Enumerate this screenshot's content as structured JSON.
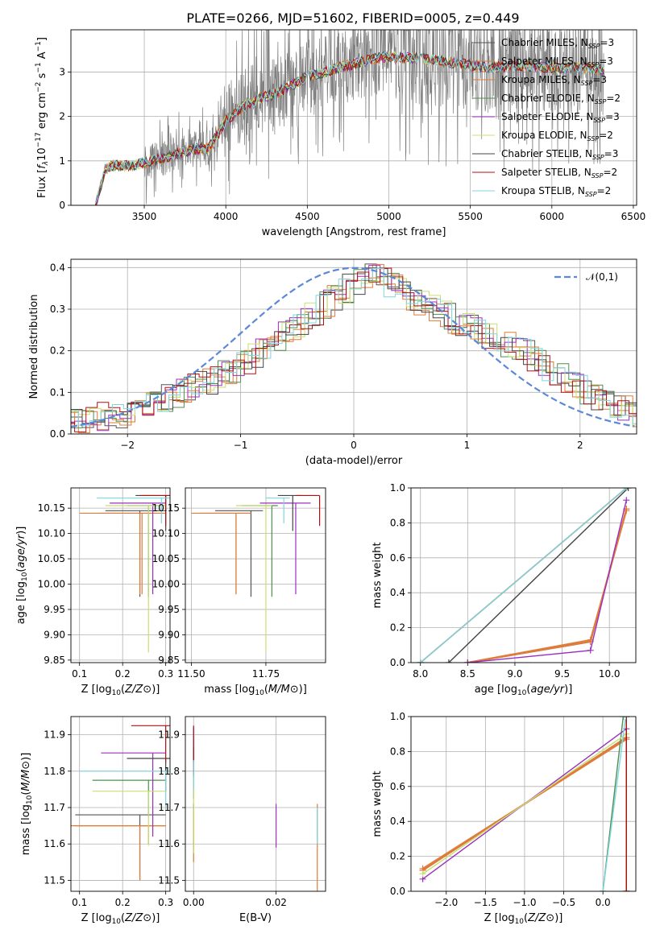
{
  "figure": {
    "title": "PLATE=0266, MJD=51602, FIBERID=0005, z=0.449"
  },
  "colors": {
    "chabrier_miles": "#555555",
    "salpeter_miles": "#e07b39",
    "kroupa_miles": "#e07b39",
    "chabrier_elodie": "#4f8f4f",
    "salpeter_elodie": "#9b30c0",
    "kroupa_elodie": "#c8e070",
    "chabrier_stelib": "#444444",
    "salpeter_stelib": "#b01010",
    "kroupa_stelib": "#7fd6e0",
    "normal": "#5b88d8",
    "spectrum": "#7f7f7f"
  },
  "chart_data": [
    {
      "id": "spectrum",
      "type": "line",
      "xlabel": "wavelength [Angstrom, rest frame]",
      "ylabel": "Flux [fλ10⁻¹⁷ erg cm⁻² s⁻¹ A⁻¹]",
      "xlim": [
        3050,
        6520
      ],
      "ylim": [
        0,
        3.95
      ],
      "xticks": [
        3500,
        4000,
        4500,
        5000,
        5500,
        6000,
        6500
      ],
      "yticks": [
        0,
        1,
        2,
        3
      ],
      "legend": {
        "placement": "top-right",
        "entries": [
          "Chabrier MILES, N_SSP=3",
          "Salpeter MILES, N_SSP=3",
          "Kroupa MILES, N_SSP=3",
          "Chabrier ELODIE, N_SSP=2",
          "Salpeter ELODIE, N_SSP=3",
          "Kroupa ELODIE, N_SSP=2",
          "Chabrier STELIB, N_SSP=3",
          "Salpeter STELIB, N_SSP=2",
          "Kroupa STELIB, N_SSP=2"
        ],
        "display": [
          {
            "text": "Chabrier MILES, N",
            "sub": "SSP",
            "post": "=3",
            "color": "#555555"
          },
          {
            "text": "Salpeter MILES, N",
            "sub": "SSP",
            "post": "=3",
            "color": "#e07b39"
          },
          {
            "text": "Kroupa MILES, N",
            "sub": "SSP",
            "post": "=3",
            "color": "#e07b39"
          },
          {
            "text": "Chabrier ELODIE, N",
            "sub": "SSP",
            "post": "=2",
            "color": "#4f8f4f"
          },
          {
            "text": "Salpeter ELODIE, N",
            "sub": "SSP",
            "post": "=3",
            "color": "#9b30c0"
          },
          {
            "text": "Kroupa ELODIE, N",
            "sub": "SSP",
            "post": "=2",
            "color": "#c8e070"
          },
          {
            "text": "Chabrier STELIB, N",
            "sub": "SSP",
            "post": "=3",
            "color": "#444444"
          },
          {
            "text": "Salpeter STELIB, N",
            "sub": "SSP",
            "post": "=2",
            "color": "#b01010"
          },
          {
            "text": "Kroupa STELIB, N",
            "sub": "SSP",
            "post": "=2",
            "color": "#7fd6e0"
          }
        ]
      },
      "models": {
        "x": [
          3200,
          3260,
          3300,
          3400,
          3500,
          3600,
          3700,
          3800,
          3900,
          4000,
          4100,
          4200,
          4300,
          4400,
          4500,
          4600,
          4700,
          4800,
          4900,
          5000,
          5200,
          5400,
          5600,
          5800,
          6000,
          6200,
          6320
        ],
        "y": [
          0,
          0.8,
          0.9,
          0.88,
          0.95,
          1.05,
          1.15,
          1.25,
          1.3,
          1.9,
          2.2,
          2.4,
          2.5,
          2.7,
          2.9,
          3.0,
          3.1,
          3.2,
          3.3,
          3.35,
          3.3,
          3.2,
          3.1,
          3.15,
          3.1,
          3.1,
          3.05
        ]
      }
    },
    {
      "id": "residual-histogram",
      "type": "line",
      "xlabel": "(data-model)/error",
      "ylabel": "Normed distribution",
      "xlim": [
        -2.5,
        2.5
      ],
      "ylim": [
        0,
        0.42
      ],
      "xticks": [
        -2,
        -1,
        0,
        1,
        2
      ],
      "yticks": [
        0.0,
        0.1,
        0.2,
        0.3,
        0.4
      ],
      "legend": {
        "placement": "top-right",
        "entries": [
          "𝒩(0,1)"
        ]
      },
      "histogram_envelope": {
        "x": [
          -2.5,
          -2.0,
          -1.5,
          -1.0,
          -0.5,
          0.0,
          0.2,
          0.5,
          1.0,
          1.5,
          2.0,
          2.5
        ],
        "y": [
          0.03,
          0.05,
          0.1,
          0.16,
          0.26,
          0.36,
          0.38,
          0.33,
          0.26,
          0.2,
          0.11,
          0.05
        ]
      }
    },
    {
      "id": "age-vs-Z",
      "type": "scatter",
      "xlabel": "Z [log10(Z/Z⊙)]",
      "ylabel": "age [log10(age/yr)]",
      "xlim": [
        0.08,
        0.31
      ],
      "ylim": [
        9.845,
        10.19
      ],
      "xticks": [
        0.1,
        0.2,
        0.3
      ],
      "yticks": [
        9.85,
        9.9,
        9.95,
        10.0,
        10.05,
        10.1,
        10.15
      ],
      "points": [
        {
          "model": "Chabrier MILES",
          "x": 0.24,
          "y": 10.145,
          "xerr": [
            0.08,
            0.06
          ],
          "yerr": [
            0.17,
            0
          ]
        },
        {
          "model": "Salpeter MILES",
          "x": 0.245,
          "y": 10.14,
          "xerr": [
            0.1,
            0.05
          ],
          "yerr": [
            0.16,
            0
          ]
        },
        {
          "model": "Kroupa MILES",
          "x": 0.24,
          "y": 10.14,
          "xerr": [
            0.14,
            0.06
          ],
          "yerr": [
            0.16,
            0
          ]
        },
        {
          "model": "Chabrier ELODIE",
          "x": 0.26,
          "y": 10.155,
          "xerr": [
            0.05,
            0.04
          ],
          "yerr": [
            0.18,
            0
          ]
        },
        {
          "model": "Salpeter ELODIE",
          "x": 0.27,
          "y": 10.16,
          "xerr": [
            0.1,
            0.03
          ],
          "yerr": [
            0.18,
            0
          ]
        },
        {
          "model": "Kroupa ELODIE",
          "x": 0.26,
          "y": 10.155,
          "xerr": [
            0.1,
            0.04
          ],
          "yerr": [
            0.29,
            0
          ]
        },
        {
          "model": "Chabrier STELIB",
          "x": 0.3,
          "y": 10.175,
          "xerr": [
            0.07,
            0.01
          ],
          "yerr": [
            0.07,
            0
          ]
        },
        {
          "model": "Salpeter STELIB",
          "x": 0.3,
          "y": 10.175,
          "xerr": [
            0.06,
            0.01
          ],
          "yerr": [
            0.06,
            0
          ]
        },
        {
          "model": "Kroupa STELIB",
          "x": 0.29,
          "y": 10.17,
          "xerr": [
            0.15,
            0.02
          ],
          "yerr": [
            0.05,
            0
          ]
        }
      ]
    },
    {
      "id": "age-vs-mass",
      "type": "scatter",
      "xlabel": "mass [log10(M/M⊙)]",
      "ylabel": "",
      "xlim": [
        11.48,
        11.95
      ],
      "ylim": [
        9.845,
        10.19
      ],
      "xticks": [
        11.5,
        11.75
      ],
      "yticks": [
        9.85,
        9.9,
        9.95,
        10.0,
        10.05,
        10.1,
        10.15
      ],
      "points": [
        {
          "model": "Chabrier MILES",
          "x": 11.7,
          "y": 10.145,
          "xerr": [
            0.12,
            0.04
          ],
          "yerr": [
            0.17,
            0
          ]
        },
        {
          "model": "Salpeter MILES",
          "x": 11.65,
          "y": 10.14,
          "xerr": [
            0.12,
            0.05
          ],
          "yerr": [
            0.16,
            0
          ]
        },
        {
          "model": "Kroupa MILES",
          "x": 11.65,
          "y": 10.14,
          "xerr": [
            0.15,
            0.05
          ],
          "yerr": [
            0.16,
            0
          ]
        },
        {
          "model": "Chabrier ELODIE",
          "x": 11.77,
          "y": 10.155,
          "xerr": [
            0.1,
            0.02
          ],
          "yerr": [
            0.18,
            0
          ]
        },
        {
          "model": "Salpeter ELODIE",
          "x": 11.85,
          "y": 10.16,
          "xerr": [
            0.12,
            0.05
          ],
          "yerr": [
            0.18,
            0
          ]
        },
        {
          "model": "Kroupa ELODIE",
          "x": 11.75,
          "y": 10.155,
          "xerr": [
            0.1,
            0.02
          ],
          "yerr": [
            0.29,
            0
          ]
        },
        {
          "model": "Chabrier STELIB",
          "x": 11.84,
          "y": 10.175,
          "xerr": [
            0.05,
            0.03
          ],
          "yerr": [
            0.07,
            0
          ]
        },
        {
          "model": "Salpeter STELIB",
          "x": 11.93,
          "y": 10.175,
          "xerr": [
            0.08,
            0
          ],
          "yerr": [
            0.06,
            0
          ]
        },
        {
          "model": "Kroupa STELIB",
          "x": 11.81,
          "y": 10.17,
          "xerr": [
            0.06,
            0.02
          ],
          "yerr": [
            0.05,
            0
          ]
        }
      ]
    },
    {
      "id": "mass-weight-vs-age",
      "type": "line",
      "xlabel": "age [log10(age/yr)]",
      "ylabel": "mass weight",
      "xlim": [
        7.9,
        10.28
      ],
      "ylim": [
        0,
        1.0
      ],
      "xticks": [
        8.0,
        8.5,
        9.0,
        9.5,
        10.0
      ],
      "yticks": [
        0.0,
        0.2,
        0.4,
        0.6,
        0.8,
        1.0
      ],
      "series": [
        {
          "model": "Chabrier MILES",
          "x": [
            8.5,
            9.8,
            10.18
          ],
          "y": [
            0,
            0.12,
            0.88
          ]
        },
        {
          "model": "Salpeter MILES",
          "x": [
            8.5,
            9.8,
            10.18
          ],
          "y": [
            0,
            0.13,
            0.87
          ]
        },
        {
          "model": "Kroupa MILES",
          "x": [
            8.5,
            9.8,
            10.18
          ],
          "y": [
            0,
            0.12,
            0.88
          ]
        },
        {
          "model": "Chabrier ELODIE",
          "x": [
            8.0,
            10.18
          ],
          "y": [
            0,
            1.0
          ]
        },
        {
          "model": "Salpeter ELODIE",
          "x": [
            8.5,
            9.8,
            10.18
          ],
          "y": [
            0,
            0.07,
            0.93
          ]
        },
        {
          "model": "Kroupa ELODIE",
          "x": [
            8.0,
            10.18
          ],
          "y": [
            0,
            1.0
          ]
        },
        {
          "model": "Chabrier STELIB",
          "x": [
            8.3,
            10.2
          ],
          "y": [
            0,
            1.0
          ]
        },
        {
          "model": "Salpeter STELIB",
          "x": [
            8.0,
            10.18
          ],
          "y": [
            0,
            1.0
          ]
        },
        {
          "model": "Kroupa STELIB",
          "x": [
            8.0,
            10.18
          ],
          "y": [
            0,
            1.0
          ]
        }
      ]
    },
    {
      "id": "mass-vs-Z",
      "type": "scatter",
      "xlabel": "Z [log10(Z/Z⊙)]",
      "ylabel": "mass [log10(M/M⊙)]",
      "xlim": [
        0.08,
        0.31
      ],
      "ylim": [
        11.47,
        11.95
      ],
      "xticks": [
        0.1,
        0.2,
        0.3
      ],
      "yticks": [
        11.5,
        11.6,
        11.7,
        11.8,
        11.9
      ],
      "points": [
        {
          "model": "Chabrier MILES",
          "x": 0.24,
          "y": 11.68,
          "xerr": [
            0.15,
            0.06
          ],
          "yerr": [
            0.18,
            0
          ]
        },
        {
          "model": "Salpeter MILES",
          "x": 0.26,
          "y": 11.65,
          "xerr": [
            0.17,
            0.04
          ],
          "yerr": [
            0.05,
            0
          ]
        },
        {
          "model": "Kroupa MILES",
          "x": 0.24,
          "y": 11.65,
          "xerr": [
            0.16,
            0.06
          ],
          "yerr": [
            0.15,
            0
          ]
        },
        {
          "model": "Chabrier ELODIE",
          "x": 0.26,
          "y": 11.775,
          "xerr": [
            0.13,
            0.04
          ],
          "yerr": [
            0.1,
            0
          ]
        },
        {
          "model": "Salpeter ELODIE",
          "x": 0.27,
          "y": 11.85,
          "xerr": [
            0.12,
            0.03
          ],
          "yerr": [
            0.23,
            0
          ]
        },
        {
          "model": "Kroupa ELODIE",
          "x": 0.26,
          "y": 11.745,
          "xerr": [
            0.13,
            0.04
          ],
          "yerr": [
            0.15,
            0
          ]
        },
        {
          "model": "Chabrier STELIB",
          "x": 0.3,
          "y": 11.835,
          "xerr": [
            0.09,
            0.01
          ],
          "yerr": [
            0.09,
            0
          ]
        },
        {
          "model": "Salpeter STELIB",
          "x": 0.3,
          "y": 11.925,
          "xerr": [
            0.08,
            0.01
          ],
          "yerr": [
            0.1,
            0
          ]
        },
        {
          "model": "Kroupa STELIB",
          "x": 0.3,
          "y": 11.8,
          "xerr": [
            0.2,
            0.01
          ],
          "yerr": [
            0.1,
            0
          ]
        }
      ]
    },
    {
      "id": "mass-vs-ebv",
      "type": "scatter",
      "xlabel": "E(B-V)",
      "ylabel": "",
      "xlim": [
        -0.002,
        0.032
      ],
      "ylim": [
        11.47,
        11.95
      ],
      "xticks": [
        0.0,
        0.02
      ],
      "yticks": [
        11.5,
        11.6,
        11.7,
        11.8,
        11.9
      ],
      "points": [
        {
          "model": "Chabrier MILES",
          "x": 0.0,
          "y": 11.68,
          "yerr": [
            0.1,
            0.03
          ]
        },
        {
          "model": "Salpeter MILES",
          "x": 0.0,
          "y": 11.65,
          "yerr": [
            0.05,
            0.05
          ]
        },
        {
          "model": "Kroupa MILES",
          "x": 0.0,
          "y": 11.65,
          "yerr": [
            0.1,
            0.03
          ]
        },
        {
          "model": "Chabrier ELODIE",
          "x": 0.0,
          "y": 11.775,
          "yerr": [
            0.05,
            0.03
          ]
        },
        {
          "model": "Salpeter ELODIE",
          "x": 0.0,
          "y": 11.85,
          "yerr": [
            0.05,
            0.07
          ]
        },
        {
          "model": "Kroupa ELODIE",
          "x": 0.0,
          "y": 11.745,
          "yerr": [
            0.17,
            0.05
          ]
        },
        {
          "model": "Chabrier STELIB",
          "x": 0.0,
          "y": 11.835,
          "yerr": [
            0.05,
            0.03
          ]
        },
        {
          "model": "Salpeter STELIB",
          "x": 0.0,
          "y": 11.925,
          "yerr": [
            0.1,
            0.0
          ]
        },
        {
          "model": "Kroupa STELIB",
          "x": 0.0,
          "y": 11.8,
          "yerr": [
            0.05,
            0.03
          ]
        },
        {
          "model": "Salpeter ELODIE",
          "x": 0.02,
          "y": 11.65,
          "yerr": [
            0.06,
            0.06
          ]
        },
        {
          "model": "Kroupa MILES",
          "x": 0.03,
          "y": 11.6,
          "yerr": [
            0.13,
            0.11
          ]
        },
        {
          "model": "Kroupa STELIB",
          "x": 0.03,
          "y": 11.65,
          "yerr": [
            0.05,
            0.05
          ]
        }
      ]
    },
    {
      "id": "mass-weight-vs-Z",
      "type": "line",
      "xlabel": "Z [log10(Z/Z⊙)]",
      "ylabel": "mass weight",
      "xlim": [
        -2.45,
        0.42
      ],
      "ylim": [
        0,
        1.0
      ],
      "xticks": [
        -2.0,
        -1.5,
        -1.0,
        -0.5,
        0.0
      ],
      "yticks": [
        0.0,
        0.2,
        0.4,
        0.6,
        0.8,
        1.0
      ],
      "series": [
        {
          "model": "Chabrier MILES",
          "x": [
            -2.3,
            0.3
          ],
          "y": [
            0.12,
            0.88
          ]
        },
        {
          "model": "Salpeter MILES",
          "x": [
            -2.3,
            0.3
          ],
          "y": [
            0.13,
            0.87
          ]
        },
        {
          "model": "Kroupa MILES",
          "x": [
            -2.3,
            0.3
          ],
          "y": [
            0.12,
            0.88
          ]
        },
        {
          "model": "Chabrier ELODIE",
          "x": [
            0.0,
            0.26
          ],
          "y": [
            0,
            1.0
          ]
        },
        {
          "model": "Salpeter ELODIE",
          "x": [
            -2.3,
            0.3
          ],
          "y": [
            0.07,
            0.93
          ]
        },
        {
          "model": "Kroupa ELODIE",
          "x": [
            -2.3,
            0.3
          ],
          "y": [
            0.1,
            0.9
          ]
        },
        {
          "model": "Chabrier STELIB",
          "x": [
            0.3,
            0.3
          ],
          "y": [
            0,
            1.0
          ]
        },
        {
          "model": "Salpeter STELIB",
          "x": [
            0.3,
            0.3
          ],
          "y": [
            0,
            1.0
          ]
        },
        {
          "model": "Kroupa STELIB",
          "x": [
            0.0,
            0.29
          ],
          "y": [
            0,
            1.0
          ]
        }
      ]
    }
  ]
}
